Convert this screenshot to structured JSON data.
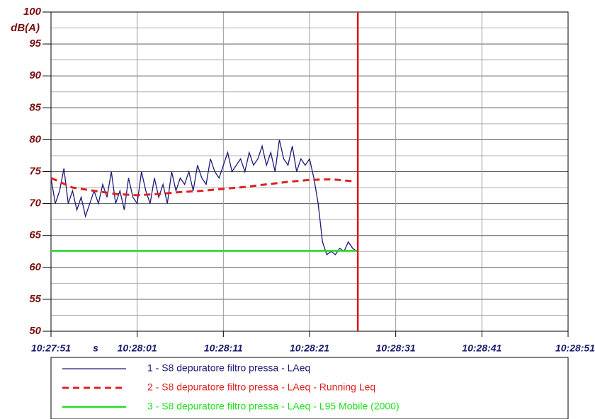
{
  "chart_data": {
    "type": "line",
    "y_label": "dB(A)",
    "x_label": "s",
    "ylim": [
      50,
      100
    ],
    "yticks": [
      50,
      55,
      60,
      65,
      70,
      75,
      80,
      85,
      90,
      95,
      100
    ],
    "minor_yticks": [
      52.5,
      57.5,
      62.5,
      67.5,
      72.5,
      77.5,
      82.5,
      87.5,
      92.5,
      97.5
    ],
    "xlim": [
      0,
      60
    ],
    "xticks": [
      {
        "value": 0,
        "label": "10:27:51"
      },
      {
        "value": 10,
        "label": "10:28:01"
      },
      {
        "value": 20,
        "label": "10:28:11"
      },
      {
        "value": 30,
        "label": "10:28:21"
      },
      {
        "value": 40,
        "label": "10:28:31"
      },
      {
        "value": 50,
        "label": "10:28:41"
      },
      {
        "value": 60,
        "label": "10:28:51"
      }
    ],
    "grid": true,
    "cursor": 35.6,
    "cursor_color": "#e01010",
    "series": [
      {
        "name": "1 - S8 depuratore filtro pressa - LAeq",
        "color": "#1a1a7a",
        "style": "solid",
        "x": [
          0,
          0.5,
          1,
          1.5,
          2,
          2.5,
          3,
          3.5,
          4,
          4.5,
          5,
          5.5,
          6,
          6.5,
          7,
          7.5,
          8,
          8.5,
          9,
          9.5,
          10,
          10.5,
          11,
          11.5,
          12,
          12.5,
          13,
          13.5,
          14,
          14.5,
          15,
          15.5,
          16,
          16.5,
          17,
          17.5,
          18,
          18.5,
          19,
          19.5,
          20,
          20.5,
          21,
          21.5,
          22,
          22.5,
          23,
          23.5,
          24,
          24.5,
          25,
          25.5,
          26,
          26.5,
          27,
          27.5,
          28,
          28.5,
          29,
          29.5,
          30,
          30.5,
          31,
          31.5,
          32,
          32.5,
          33,
          33.5,
          34,
          34.5,
          35,
          35.5
        ],
        "values": [
          74,
          70,
          72,
          75.5,
          70,
          72,
          69,
          71,
          68,
          70,
          72,
          70,
          73,
          71,
          75,
          70,
          72,
          69,
          74,
          71,
          70,
          75,
          72,
          70,
          74,
          71,
          73,
          70,
          75,
          72,
          74,
          73,
          75,
          72,
          76,
          74,
          73,
          77,
          75,
          74,
          76,
          78,
          75,
          76,
          77,
          75,
          78,
          76,
          77,
          79,
          76,
          78,
          75,
          80,
          77,
          76,
          79,
          75,
          77,
          76,
          77,
          74,
          70,
          64,
          62,
          62.5,
          62,
          63,
          62.5,
          64,
          63,
          62.5
        ]
      },
      {
        "name": "2 - S8 depuratore filtro pressa - LAeq - Running Leq",
        "color": "#e02020",
        "style": "dashed",
        "x": [
          0,
          2.5,
          5,
          7.5,
          10,
          12.5,
          15,
          17.5,
          20,
          22.5,
          25,
          27.5,
          30,
          32.5,
          35
        ],
        "values": [
          74,
          72.5,
          72,
          71.5,
          71.3,
          71.5,
          71.8,
          72,
          72.3,
          72.6,
          73,
          73.4,
          73.7,
          73.8,
          73.5
        ]
      },
      {
        "name": "3 - S8 depuratore filtro pressa - LAeq - L95 Mobile (2000)",
        "color": "#22dd22",
        "style": "solid",
        "x": [
          0,
          35.5
        ],
        "values": [
          62.6,
          62.6
        ]
      }
    ]
  }
}
